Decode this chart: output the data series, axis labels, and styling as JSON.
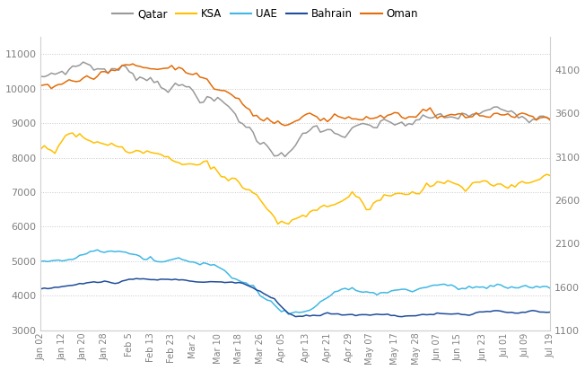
{
  "legend_labels": [
    "Qatar",
    "KSA",
    "UAE",
    "Bahrain",
    "Oman"
  ],
  "legend_colors": [
    "#999999",
    "#FFC000",
    "#41B8E4",
    "#1F4E9C",
    "#E36C09"
  ],
  "left_ylim": [
    3000,
    11500
  ],
  "right_ylim": [
    1100,
    4483
  ],
  "left_yticks": [
    3000,
    4000,
    5000,
    6000,
    7000,
    8000,
    9000,
    10000,
    11000
  ],
  "right_yticks": [
    1100,
    1600,
    2100,
    2600,
    3100,
    3600,
    4100
  ],
  "xtick_labels": [
    "Jan 02",
    "Jan 12",
    "Jan 20",
    "Jan 28",
    "Feb 5",
    "Feb 13",
    "Feb 23",
    "Mar 2",
    "Mar 10",
    "Mar 18",
    "Mar 26",
    "Apr 05",
    "Apr 13",
    "Apr 21",
    "Apr 29",
    "May 07",
    "May 17",
    "May 28",
    "Jun 07",
    "Jun 15",
    "Jun 23",
    "Jul 01",
    "Jul 09",
    "Jul 19"
  ],
  "background_color": "#ffffff",
  "grid_color": "#c8c8c8",
  "line_width": 1.1
}
